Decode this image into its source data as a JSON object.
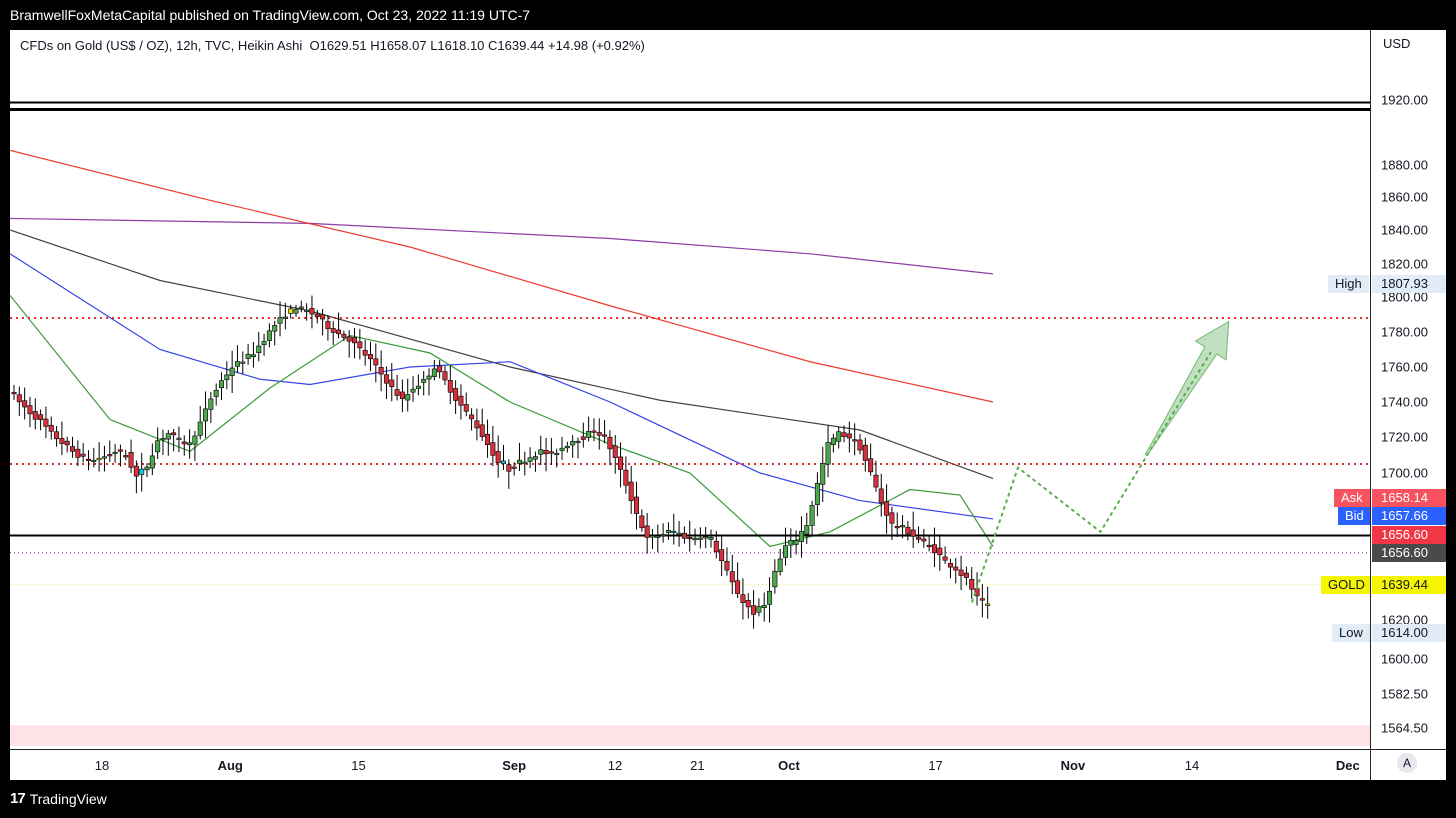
{
  "header": {
    "publisher_line": "BramwellFoxMetaCapital published on TradingView.com, Oct 23, 2022 11:19 UTC-7"
  },
  "footer": {
    "logo": "17",
    "brand": "TradingView"
  },
  "chart_data": {
    "type": "candlestick",
    "title": "CFDs on Gold (US$ / OZ), 12h, TVC, Heikin Ashi",
    "ohlc_text": "O1629.51  H1658.07  L1618.10  C1639.44  +14.98 (+0.92%)",
    "currency": "USD",
    "y_ticks": [
      "1920.00",
      "1880.00",
      "1860.00",
      "1840.00",
      "1820.00",
      "1800.00",
      "1780.00",
      "1760.00",
      "1740.00",
      "1720.00",
      "1700.00",
      "1620.00",
      "1600.00",
      "1582.50",
      "1564.50"
    ],
    "x_ticks": [
      "18",
      "Aug",
      "15",
      "Sep",
      "12",
      "21",
      "Oct",
      "17",
      "Nov",
      "14",
      "Dec"
    ],
    "markers": {
      "high": {
        "label": "High",
        "value": "1807.93"
      },
      "ask": {
        "label": "Ask",
        "value": "1658.14"
      },
      "bid": {
        "label": "Bid",
        "value": "1657.66"
      },
      "red_price": "1656.60",
      "gray_price": "1656.60",
      "gold": {
        "label": "GOLD",
        "value": "1639.44"
      },
      "low": {
        "label": "Low",
        "value": "1614.00"
      }
    },
    "horizontal_levels": [
      {
        "kind": "black-double",
        "value": 1916
      },
      {
        "kind": "red-dotted",
        "value": 1788
      },
      {
        "kind": "red-dotted",
        "value": 1705
      },
      {
        "kind": "black-solid",
        "value": 1666
      },
      {
        "kind": "purple-dotted",
        "value": 1656.6
      },
      {
        "kind": "yellow-dotted",
        "value": 1639.44
      }
    ],
    "projection_path": [
      {
        "date": "Oct 21",
        "price": 1630
      },
      {
        "date": "Oct 26",
        "price": 1703
      },
      {
        "date": "Nov 4",
        "price": 1668
      },
      {
        "date": "Nov 9",
        "price": 1709
      },
      {
        "date": "Nov 16",
        "price": 1768
      }
    ],
    "projection_arrow": {
      "from": {
        "date": "Nov 9",
        "price": 1710
      },
      "to": {
        "date": "Nov 18",
        "price": 1786
      }
    },
    "moving_averages": [
      {
        "color": "#8e3ca8",
        "start": 1847,
        "end": 1814
      },
      {
        "color": "#f03a2e",
        "start": 1889,
        "end": 1740
      },
      {
        "color": "#424242",
        "start": 1840,
        "end": 1697
      },
      {
        "color": "#3344e8",
        "start": 1826,
        "end": 1675
      },
      {
        "color": "#3a9a3a",
        "start": 1801,
        "end": 1660
      }
    ],
    "reference_zone": {
      "from": 1555,
      "to": 1566
    },
    "colors": {
      "bull": "#4ca64c",
      "bear": "#d6303d",
      "cyan": "#17c7d8",
      "yellow": "#f5e100"
    }
  }
}
